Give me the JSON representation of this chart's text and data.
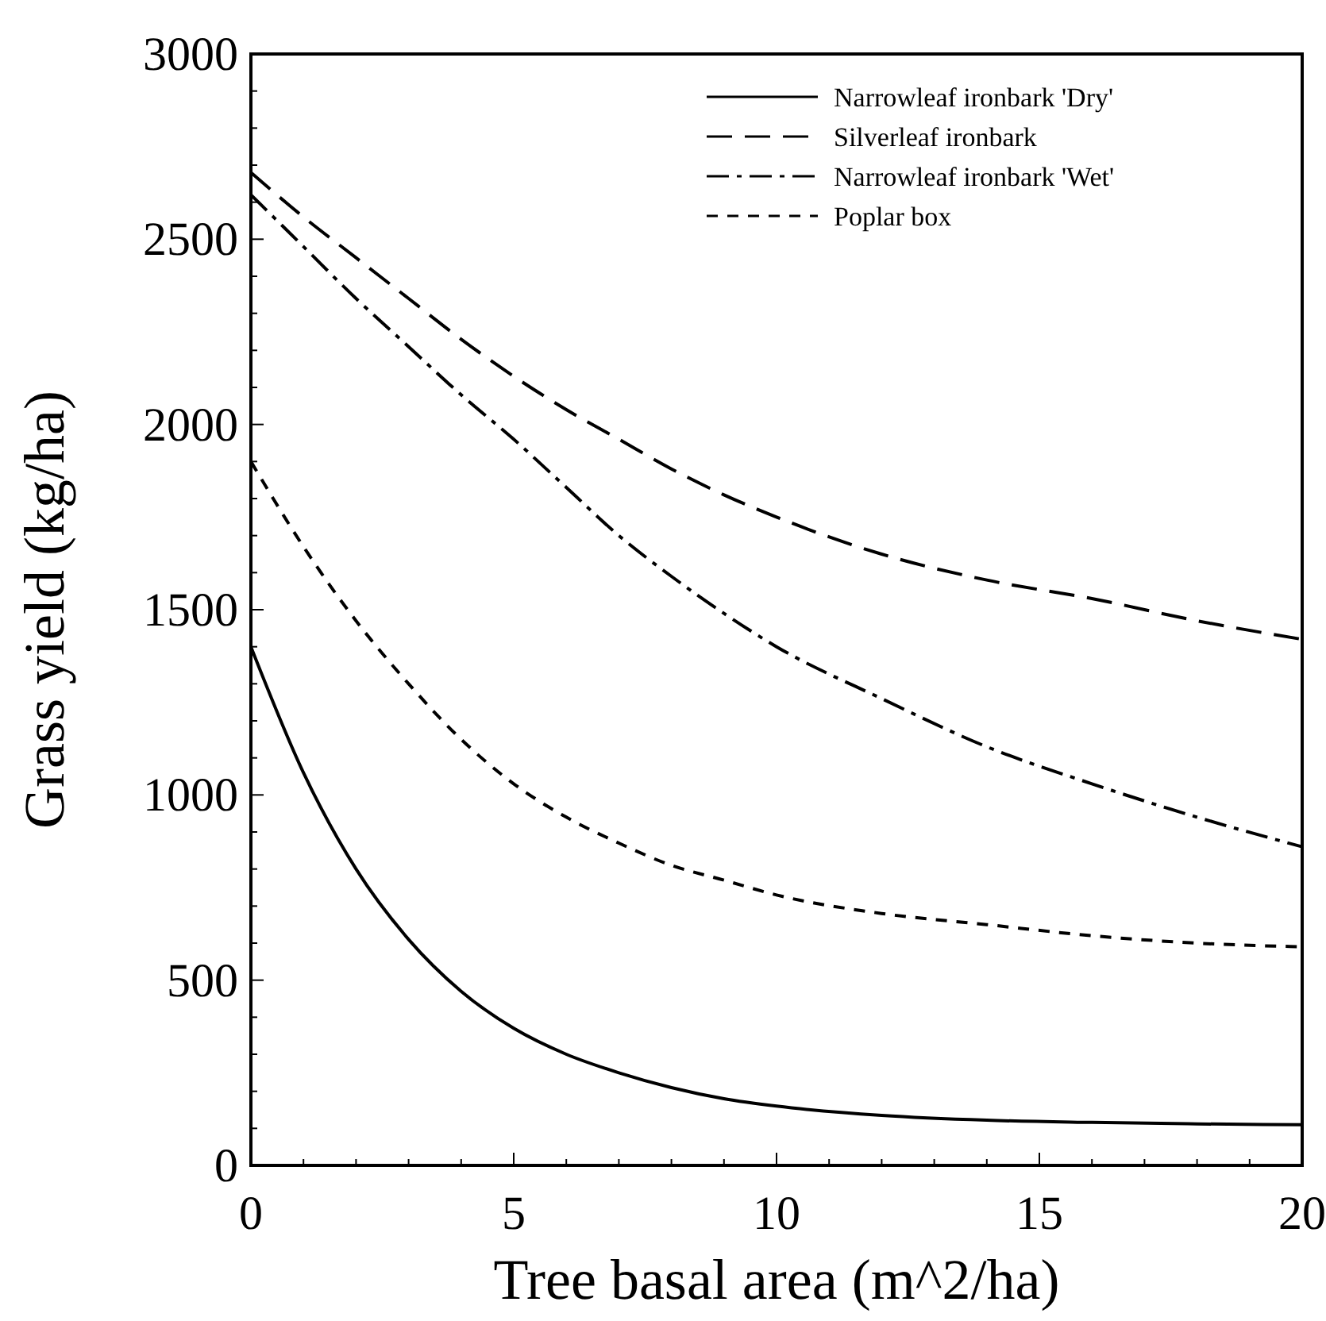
{
  "chart_data": {
    "type": "line",
    "xlabel": "Tree basal area (m^2/ha)",
    "ylabel": "Grass yield (kg/ha)",
    "x": [
      0,
      1,
      2,
      3,
      4,
      5,
      6,
      7,
      8,
      9,
      10,
      12,
      14,
      16,
      18,
      20
    ],
    "xlim": [
      0,
      20
    ],
    "ylim": [
      0,
      3000
    ],
    "xticks": [
      0,
      {
        "value": 1,
        "label": null
      },
      {
        "value": 2,
        "label": null
      },
      {
        "value": 3,
        "label": null
      },
      {
        "value": 4,
        "label": null
      },
      5,
      {
        "value": 6,
        "label": null
      },
      {
        "value": 7,
        "label": null
      },
      {
        "value": 8,
        "label": null
      },
      {
        "value": 9,
        "label": null
      },
      10,
      {
        "value": 11,
        "label": null
      },
      {
        "value": 12,
        "label": null
      },
      {
        "value": 13,
        "label": null
      },
      {
        "value": 14,
        "label": null
      },
      15,
      {
        "value": 16,
        "label": null
      },
      {
        "value": 17,
        "label": null
      },
      {
        "value": 18,
        "label": null
      },
      {
        "value": 19,
        "label": null
      },
      20
    ],
    "yticks": [
      0,
      {
        "value": 100,
        "label": null
      },
      {
        "value": 200,
        "label": null
      },
      {
        "value": 300,
        "label": null
      },
      {
        "value": 400,
        "label": null
      },
      500,
      {
        "value": 600,
        "label": null
      },
      {
        "value": 700,
        "label": null
      },
      {
        "value": 800,
        "label": null
      },
      {
        "value": 900,
        "label": null
      },
      1000,
      {
        "value": 1100,
        "label": null
      },
      {
        "value": 1200,
        "label": null
      },
      {
        "value": 1300,
        "label": null
      },
      {
        "value": 1400,
        "label": null
      },
      1500,
      {
        "value": 1600,
        "label": null
      },
      {
        "value": 1700,
        "label": null
      },
      {
        "value": 1800,
        "label": null
      },
      {
        "value": 1900,
        "label": null
      },
      2000,
      {
        "value": 2100,
        "label": null
      },
      {
        "value": 2200,
        "label": null
      },
      {
        "value": 2300,
        "label": null
      },
      {
        "value": 2400,
        "label": null
      },
      2500,
      {
        "value": 2600,
        "label": null
      },
      {
        "value": 2700,
        "label": null
      },
      {
        "value": 2800,
        "label": null
      },
      {
        "value": 2900,
        "label": null
      },
      3000
    ],
    "legend": "top right",
    "grid": false,
    "marker": "none",
    "series": [
      {
        "name": "Narrowleaf ironbark 'Dry'",
        "color": "#000000",
        "line_style": "solid",
        "values": [
          1400,
          1060,
          800,
          610,
          470,
          370,
          300,
          250,
          210,
          180,
          160,
          135,
          122,
          116,
          112,
          110
        ]
      },
      {
        "name": "Silverleaf ironbark",
        "color": "#000000",
        "line_style": "dashed",
        "values": [
          2680,
          2560,
          2450,
          2340,
          2230,
          2130,
          2040,
          1960,
          1880,
          1810,
          1750,
          1650,
          1580,
          1530,
          1470,
          1420
        ]
      },
      {
        "name": "Narrowleaf ironbark 'Wet'",
        "color": "#000000",
        "line_style": "dashdot",
        "values": [
          2620,
          2480,
          2340,
          2210,
          2080,
          1960,
          1830,
          1700,
          1590,
          1490,
          1400,
          1260,
          1130,
          1030,
          940,
          860
        ]
      },
      {
        "name": "Poplar box",
        "color": "#000000",
        "line_style": "dotted",
        "values": [
          1900,
          1670,
          1470,
          1300,
          1150,
          1030,
          940,
          870,
          810,
          770,
          730,
          680,
          650,
          620,
          600,
          590
        ]
      }
    ]
  }
}
